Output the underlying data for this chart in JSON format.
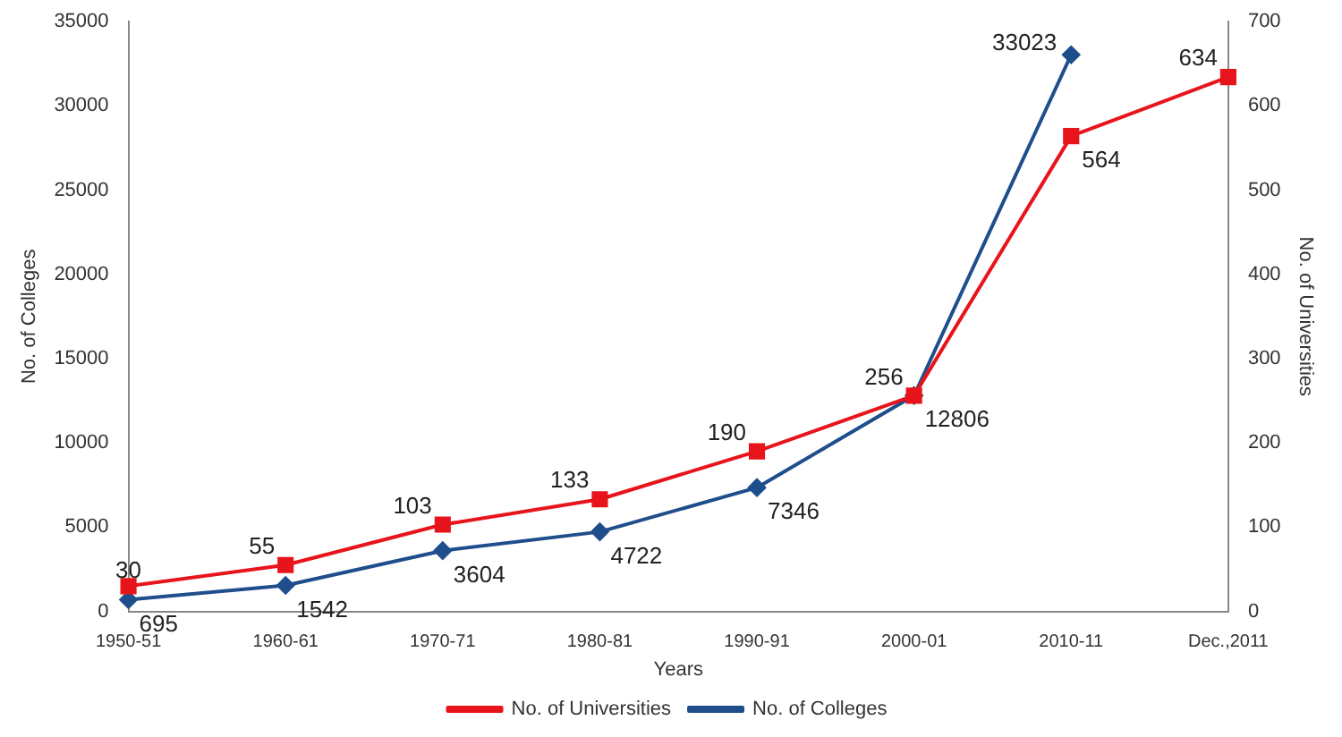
{
  "chart_data": {
    "type": "line",
    "xlabel": "Years",
    "ylabel": "No. of Colleges",
    "y2label": "No. of Universities",
    "categories": [
      "1950-51",
      "1960-61",
      "1970-71",
      "1980-81",
      "1990-91",
      "2000-01",
      "2010-11",
      "Dec.,2011"
    ],
    "series": [
      {
        "name": "No. of Universities",
        "color": "#e8141b",
        "axis": "y2",
        "marker": "square",
        "values": [
          30,
          55,
          103,
          133,
          190,
          256,
          564,
          634
        ]
      },
      {
        "name": "No. of Colleges",
        "color": "#1f4e8c",
        "marker": "diamond",
        "values": [
          695,
          1542,
          3604,
          4722,
          7346,
          12806,
          33023,
          null
        ]
      }
    ],
    "ylim": [
      0,
      35000
    ],
    "yticks": [
      0,
      5000,
      10000,
      15000,
      20000,
      25000,
      30000,
      35000
    ],
    "y2lim": [
      0,
      700
    ],
    "y2ticks": [
      0,
      100,
      200,
      300,
      400,
      500,
      600,
      700
    ],
    "grid": false,
    "legend": "bottom",
    "data_labels": true
  }
}
